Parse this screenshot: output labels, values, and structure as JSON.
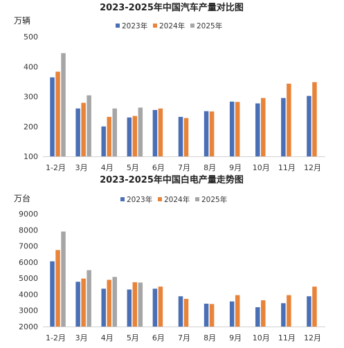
{
  "chart_data": [
    {
      "type": "bar",
      "title": "2023-2025年中国汽车产量对比图",
      "unit": "万辆",
      "categories": [
        "1-2月",
        "3月",
        "4月",
        "5月",
        "6月",
        "7月",
        "8月",
        "9月",
        "10月",
        "11月",
        "12月"
      ],
      "ylim": [
        100,
        500
      ],
      "yticks": [
        100,
        200,
        300,
        400,
        500
      ],
      "legend_position": "top-center",
      "grid": false,
      "series": [
        {
          "name": "2023年",
          "color": "#4A6FB5",
          "values": [
            364,
            260,
            200,
            230,
            255,
            232,
            251,
            283,
            277,
            295,
            302
          ]
        },
        {
          "name": "2024年",
          "color": "#E8833A",
          "values": [
            383,
            279,
            232,
            235,
            260,
            228,
            250,
            282,
            295,
            343,
            348
          ]
        },
        {
          "name": "2025年",
          "color": "#A6A6A6",
          "values": [
            445,
            304,
            260,
            263,
            null,
            null,
            null,
            null,
            null,
            null,
            null
          ]
        }
      ]
    },
    {
      "type": "bar",
      "title": "2023-2025年中国白电产量走势图",
      "unit": "万台",
      "categories": [
        "1-2月",
        "3月",
        "4月",
        "5月",
        "6月",
        "7月",
        "8月",
        "9月",
        "10月",
        "11月",
        "12月"
      ],
      "ylim": [
        2000,
        9000
      ],
      "yticks": [
        2000,
        3000,
        4000,
        5000,
        6000,
        7000,
        8000,
        9000
      ],
      "legend_position": "top-center",
      "grid": false,
      "series": [
        {
          "name": "2023年",
          "color": "#4A6FB5",
          "values": [
            6050,
            4780,
            4350,
            4300,
            4350,
            3880,
            3420,
            3560,
            3200,
            3450,
            3880
          ]
        },
        {
          "name": "2024年",
          "color": "#E8833A",
          "values": [
            6750,
            4980,
            4900,
            4750,
            4480,
            3720,
            3400,
            3950,
            3630,
            3950,
            4480
          ]
        },
        {
          "name": "2025年",
          "color": "#A6A6A6",
          "values": [
            7900,
            5500,
            5080,
            4730,
            null,
            null,
            null,
            null,
            null,
            null,
            null
          ]
        }
      ]
    }
  ]
}
